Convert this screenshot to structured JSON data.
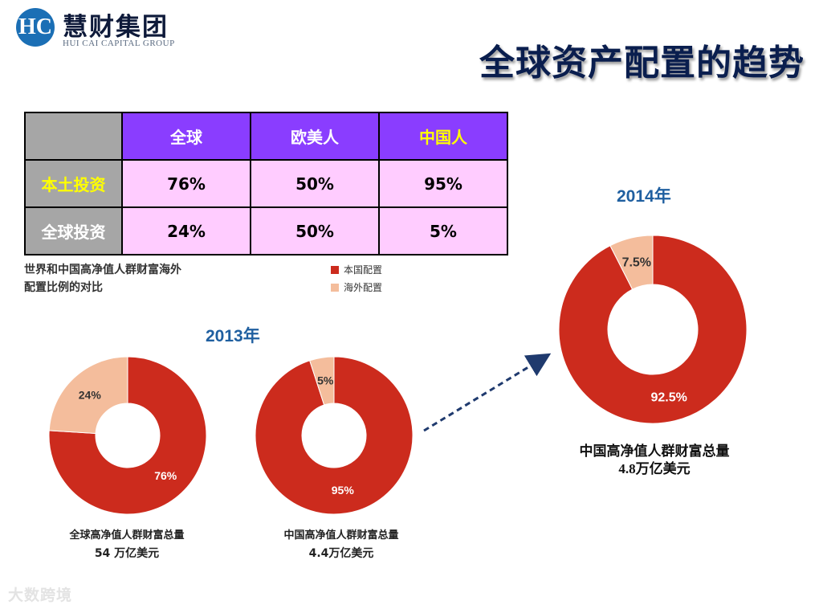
{
  "logo": {
    "mark": "HC",
    "cn": "慧财集团",
    "en": "HUI CAI CAPITAL GROUP"
  },
  "title": "全球资产配置的趋势",
  "table": {
    "headers": [
      "全球",
      "欧美人",
      "中国人"
    ],
    "rows": [
      {
        "label": "本土投资",
        "values": [
          "76%",
          "50%",
          "95%"
        ]
      },
      {
        "label": "全球投资",
        "values": [
          "24%",
          "50%",
          "5%"
        ]
      }
    ]
  },
  "caption": {
    "line1": "世界和中国高净值人群财富海外",
    "line2": "配置比例的对比"
  },
  "legend": [
    {
      "label": "本国配置",
      "color": "#cc2b1d"
    },
    {
      "label": "海外配置",
      "color": "#f4bd9c"
    }
  ],
  "year_2013": "2013年",
  "year_2014": "2014年",
  "chart_data": [
    {
      "type": "pie",
      "subtype": "donut",
      "categories": [
        "本国配置",
        "海外配置"
      ],
      "values": [
        76,
        24
      ],
      "labels": [
        "76%",
        "24%"
      ],
      "xlabel": "全球高净值人群财富总量",
      "ylabel": "54 万亿美元"
    },
    {
      "type": "pie",
      "subtype": "donut",
      "categories": [
        "本国配置",
        "海外配置"
      ],
      "values": [
        95,
        5
      ],
      "labels": [
        "95%",
        "5%"
      ],
      "xlabel": "中国高净值人群财富总量",
      "ylabel": "4.4万亿美元"
    },
    {
      "type": "pie",
      "subtype": "donut",
      "categories": [
        "本国配置",
        "海外配置"
      ],
      "values": [
        92.5,
        7.5
      ],
      "labels": [
        "92.5%",
        "7.5%"
      ],
      "xlabel": "中国高净值人群财富总量",
      "ylabel": "4.8万亿美元"
    }
  ],
  "colors": {
    "domestic": "#cc2b1d",
    "overseas": "#f4bd9c",
    "arrow": "#1f3a6e"
  },
  "watermark": "大数跨境"
}
